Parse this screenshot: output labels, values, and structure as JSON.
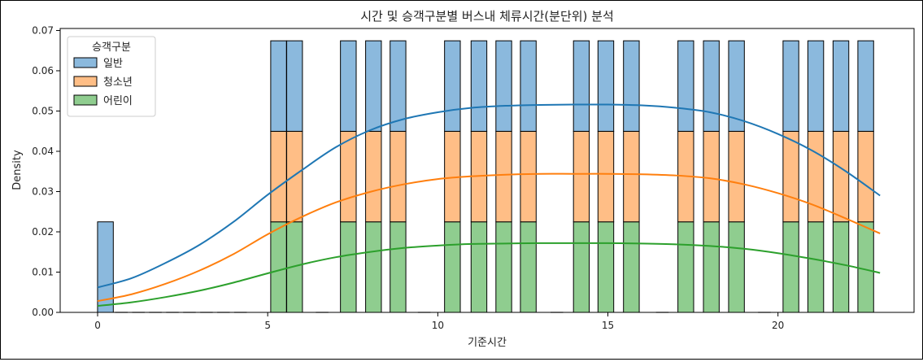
{
  "chart_data": {
    "type": "bar",
    "stacked": true,
    "title": "시간 및 승객구분별 버스내 체류시간(분단위) 분석",
    "xlabel": "기준시간",
    "ylabel": "Density",
    "xlim": [
      -1.1,
      24.0
    ],
    "ylim": [
      0.0,
      0.0705
    ],
    "xticks": [
      0,
      5,
      10,
      15,
      20
    ],
    "yticks": [
      0.0,
      0.01,
      0.02,
      0.03,
      0.04,
      0.05,
      0.06,
      0.07
    ],
    "ytick_labels": [
      "0.00",
      "0.01",
      "0.02",
      "0.03",
      "0.04",
      "0.05",
      "0.06",
      "0.07"
    ],
    "grid": false,
    "bin_width": 0.4629,
    "bin_edges_start": 0,
    "legend": {
      "title": "승객구분",
      "placement": "top-left",
      "entries": [
        "일반",
        "청소년",
        "어린이"
      ]
    },
    "series": [
      {
        "name": "어린이",
        "color": "#2ca02c",
        "bar_color": "#8fcd8f",
        "values": [
          0,
          0,
          0,
          0,
          0,
          0,
          0,
          0,
          0,
          0,
          0,
          0,
          0,
          0.02248,
          0,
          0,
          0.02248,
          0,
          0.02248,
          0.02248,
          0,
          0.02248,
          0,
          0.02248,
          0,
          0,
          0.02248,
          0,
          0,
          0.02248,
          0,
          0.02248,
          0,
          0.02248,
          0,
          0,
          0.02248,
          0,
          0.02248,
          0,
          0.02248,
          0,
          0,
          0.02248,
          0,
          0.02248,
          0,
          0.02248,
          0,
          0,
          0,
          0,
          0,
          0,
          0,
          0.02248,
          0,
          0.02248,
          0,
          0.02248,
          0,
          0,
          0.02248,
          0,
          0,
          0,
          0,
          0,
          0,
          0.02248,
          0,
          0.02248,
          0,
          0,
          0.02248,
          0,
          0,
          0,
          0,
          0.02248,
          0,
          0,
          0,
          0.02248,
          0,
          0,
          0,
          0.02248,
          0,
          0,
          0,
          0,
          0,
          0,
          0,
          0.02248,
          0,
          0.02248,
          0,
          0.02248
        ]
      }
    ],
    "bars": [
      {
        "x": 0.23,
        "ylow": 0.0,
        "yhigh": 0.02248,
        "series": "일반"
      },
      {
        "x": 5.32,
        "counts": [
          0.02248,
          0.02248,
          0.02248
        ]
      },
      {
        "x": 5.79,
        "counts": [
          0.02248,
          0.02248,
          0.02248
        ]
      },
      {
        "x": 7.37,
        "counts": [
          0.02248,
          0.02248,
          0.02248
        ]
      },
      {
        "x": 8.11,
        "counts": [
          0.02248,
          0.02248,
          0.02248
        ]
      },
      {
        "x": 8.83,
        "counts": [
          0.02248,
          0.02248,
          0.02248
        ]
      },
      {
        "x": 10.43,
        "counts": [
          0.02248,
          0.02248,
          0.02248
        ]
      },
      {
        "x": 11.21,
        "counts": [
          0.02248,
          0.02248,
          0.02248
        ]
      },
      {
        "x": 11.94,
        "counts": [
          0.02248,
          0.02248,
          0.02248
        ]
      },
      {
        "x": 12.66,
        "counts": [
          0.02248,
          0.02248,
          0.02248
        ]
      },
      {
        "x": 14.22,
        "counts": [
          0.02248,
          0.02248,
          0.02248
        ]
      },
      {
        "x": 14.94,
        "counts": [
          0.02248,
          0.02248,
          0.02248
        ]
      },
      {
        "x": 15.69,
        "counts": [
          0.02248,
          0.02248,
          0.02248
        ]
      },
      {
        "x": 17.29,
        "counts": [
          0.02248,
          0.02248,
          0.02248
        ]
      },
      {
        "x": 18.04,
        "counts": [
          0.02248,
          0.02248,
          0.02248
        ]
      },
      {
        "x": 18.78,
        "counts": [
          0.02248,
          0.02248,
          0.02248
        ]
      },
      {
        "x": 20.38,
        "counts": [
          0.02248,
          0.02248,
          0.02248
        ]
      },
      {
        "x": 21.11,
        "counts": [
          0.02248,
          0.02248,
          0.02248
        ]
      },
      {
        "x": 21.85,
        "counts": [
          0.02248,
          0.02248,
          0.02248
        ]
      },
      {
        "x": 22.58,
        "counts": [
          0.02248,
          0.02248,
          0.02248
        ]
      }
    ],
    "bar_series_order": [
      "어린이",
      "청소년",
      "일반"
    ],
    "series_colors": {
      "일반": {
        "bar": "#8bb9dd",
        "line": "#1f77b4"
      },
      "청소년": {
        "bar": "#ffbe86",
        "line": "#ff7f0e"
      },
      "어린이": {
        "bar": "#8fcd8f",
        "line": "#2ca02c"
      }
    },
    "kde": [
      {
        "series": "일반",
        "x": [
          0,
          1,
          2,
          3,
          4,
          5,
          6,
          7,
          8,
          9,
          10,
          11,
          12,
          13,
          14,
          15,
          16,
          17,
          18,
          19,
          20,
          21,
          22,
          23
        ],
        "y": [
          0.0062,
          0.0085,
          0.0123,
          0.0168,
          0.0225,
          0.0292,
          0.0353,
          0.041,
          0.0452,
          0.048,
          0.0497,
          0.0508,
          0.0513,
          0.0515,
          0.0516,
          0.0516,
          0.0514,
          0.0508,
          0.0497,
          0.0475,
          0.0443,
          0.0402,
          0.035,
          0.029
        ]
      },
      {
        "series": "청소년",
        "x": [
          0,
          1,
          2,
          3,
          4,
          5,
          6,
          7,
          8,
          9,
          10,
          11,
          12,
          13,
          14,
          15,
          16,
          17,
          18,
          19,
          20,
          21,
          22,
          23
        ],
        "y": [
          0.0028,
          0.0045,
          0.0071,
          0.0104,
          0.0145,
          0.0194,
          0.0237,
          0.0273,
          0.0299,
          0.0318,
          0.0331,
          0.0338,
          0.0342,
          0.0344,
          0.0344,
          0.0344,
          0.0343,
          0.034,
          0.0333,
          0.0318,
          0.0296,
          0.0268,
          0.0233,
          0.0196
        ]
      },
      {
        "series": "어린이",
        "x": [
          0,
          1,
          2,
          3,
          4,
          5,
          6,
          7,
          8,
          9,
          10,
          11,
          12,
          13,
          14,
          15,
          16,
          17,
          18,
          19,
          20,
          21,
          22,
          23
        ],
        "y": [
          0.0016,
          0.0025,
          0.0038,
          0.0054,
          0.0074,
          0.0097,
          0.0119,
          0.0137,
          0.015,
          0.016,
          0.0166,
          0.017,
          0.0171,
          0.0172,
          0.0172,
          0.0172,
          0.0171,
          0.0169,
          0.0165,
          0.0158,
          0.0147,
          0.0133,
          0.0117,
          0.0098
        ]
      }
    ],
    "zero_bins_x": [
      0.7,
      1.2,
      1.7,
      2.2,
      2.7,
      3.2,
      3.7,
      4.2,
      6.6,
      9.6,
      13.5,
      16.6,
      19.6
    ]
  }
}
